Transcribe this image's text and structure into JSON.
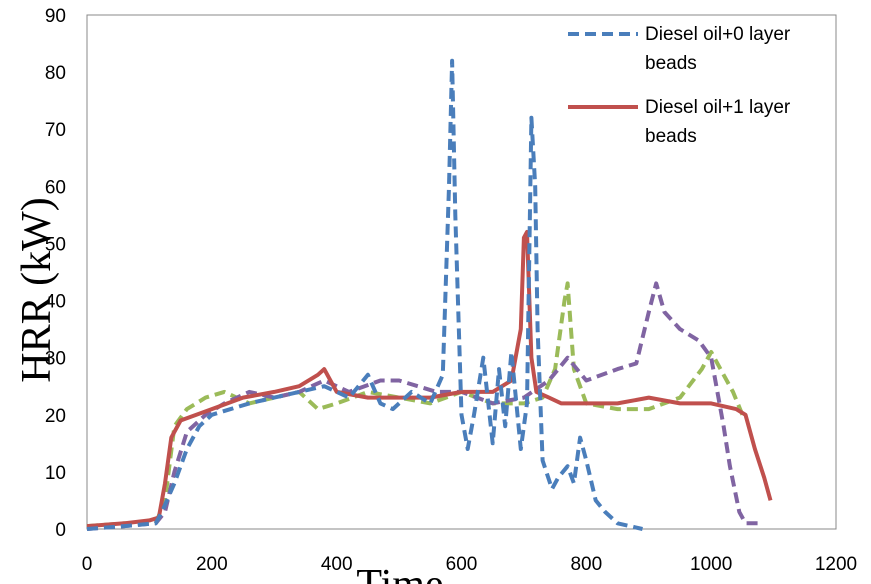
{
  "chart_data": {
    "type": "line",
    "title": "",
    "xlabel": "Time",
    "ylabel": "HRR (kW)",
    "xlim": [
      0,
      1200
    ],
    "ylim": [
      0,
      90
    ],
    "xticks": [
      "0",
      "200",
      "400",
      "600",
      "800",
      "1000",
      "1200"
    ],
    "yticks": [
      "0",
      "10",
      "20",
      "30",
      "40",
      "50",
      "60",
      "70",
      "80",
      "90"
    ],
    "grid": false,
    "legend_position": "top-right",
    "series": [
      {
        "name": "Diesel oil+0 layer beads",
        "legend_lines": [
          "Diesel oil+0 layer beads"
        ],
        "color": "#4a7ebb",
        "style": "dashed",
        "x": [
          0,
          60,
          110,
          120,
          140,
          160,
          180,
          200,
          230,
          260,
          300,
          340,
          380,
          420,
          450,
          470,
          490,
          520,
          550,
          570,
          580,
          585,
          590,
          600,
          610,
          620,
          635,
          650,
          660,
          670,
          680,
          695,
          705,
          712,
          718,
          722,
          730,
          745,
          755,
          770,
          780,
          790,
          800,
          815,
          830,
          850,
          870,
          890
        ],
        "y": [
          0,
          0.5,
          1,
          3,
          8,
          14,
          18,
          20,
          21,
          22,
          23,
          24,
          25,
          23,
          27,
          22,
          21,
          24,
          22,
          27,
          60,
          82,
          55,
          20,
          14,
          20,
          30,
          15,
          28,
          18,
          31,
          14,
          22,
          72,
          60,
          35,
          12,
          7,
          9,
          11,
          8,
          16,
          12,
          5,
          3,
          1,
          0.5,
          0
        ]
      },
      {
        "name": "Diesel oil+1 layer beads",
        "legend_lines": [
          "Diesel oil+1 layer beads"
        ],
        "color": "#c0504d",
        "style": "solid",
        "x": [
          0,
          60,
          100,
          115,
          125,
          135,
          150,
          200,
          250,
          300,
          340,
          370,
          380,
          400,
          450,
          500,
          550,
          600,
          650,
          680,
          695,
          700,
          705,
          712,
          720,
          740,
          760,
          800,
          850,
          900,
          950,
          1000,
          1040,
          1055,
          1070,
          1085,
          1095
        ],
        "y": [
          0.5,
          1,
          1.5,
          2,
          8,
          16,
          19,
          21,
          23,
          24,
          25,
          27,
          28,
          24,
          23,
          23,
          23,
          24,
          24,
          26,
          35,
          51,
          52,
          30,
          24,
          23,
          22,
          22,
          22,
          23,
          22,
          22,
          21,
          20,
          14,
          9,
          5
        ]
      },
      {
        "name": "",
        "legend_lines": [],
        "color": "#9bbb59",
        "style": "dashed",
        "x": [
          0,
          60,
          110,
          125,
          140,
          160,
          190,
          220,
          260,
          300,
          340,
          370,
          400,
          450,
          500,
          550,
          600,
          650,
          700,
          730,
          750,
          765,
          770,
          780,
          800,
          850,
          900,
          950,
          985,
          1000,
          1020,
          1035,
          1050
        ],
        "y": [
          0.5,
          1,
          1,
          5,
          18,
          21,
          23,
          24,
          22,
          23,
          24,
          21,
          22,
          24,
          23,
          22,
          24,
          22,
          22,
          23,
          28,
          40,
          43,
          28,
          22,
          21,
          21,
          23,
          28,
          31,
          27,
          24,
          20
        ]
      },
      {
        "name": "",
        "legend_lines": [],
        "color": "#8064a2",
        "style": "dashed",
        "x": [
          0,
          60,
          110,
          125,
          140,
          160,
          190,
          220,
          260,
          300,
          340,
          380,
          420,
          470,
          500,
          530,
          560,
          600,
          650,
          700,
          740,
          770,
          800,
          850,
          880,
          900,
          912,
          925,
          950,
          980,
          1000,
          1010,
          1020,
          1030,
          1045,
          1055,
          1065,
          1075
        ],
        "y": [
          0,
          0.5,
          1,
          3,
          10,
          17,
          20,
          22,
          24,
          23,
          24,
          26,
          24,
          26,
          26,
          25,
          24,
          24,
          22,
          23,
          26,
          30,
          26,
          28,
          29,
          38,
          43,
          38,
          35,
          33,
          30,
          24,
          18,
          11,
          3,
          1,
          1,
          1
        ]
      }
    ]
  }
}
